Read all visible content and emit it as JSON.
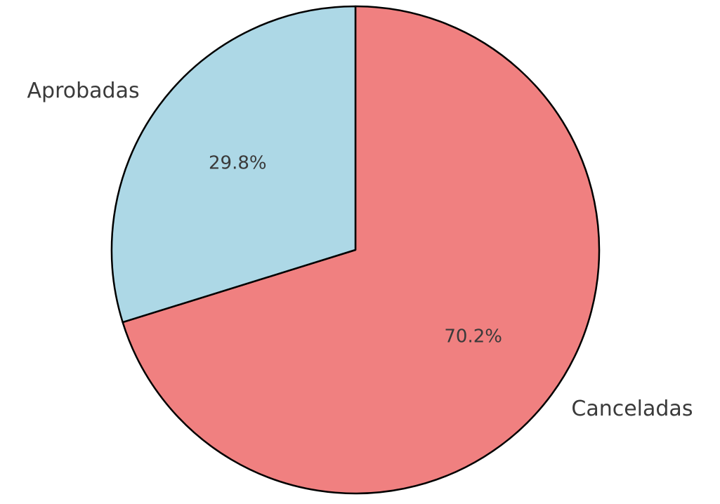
{
  "chart_data": {
    "type": "pie",
    "categories": [
      "Canceladas",
      "Aprobadas"
    ],
    "values": [
      70.2,
      29.8
    ],
    "percent_labels": [
      "70.2%",
      "29.8%"
    ],
    "colors": [
      "#f08080",
      "#add8e6"
    ],
    "start_angle_deg": 90,
    "direction": "clockwise",
    "edge_color": "#000000",
    "text_color": "#3a3a3a"
  }
}
